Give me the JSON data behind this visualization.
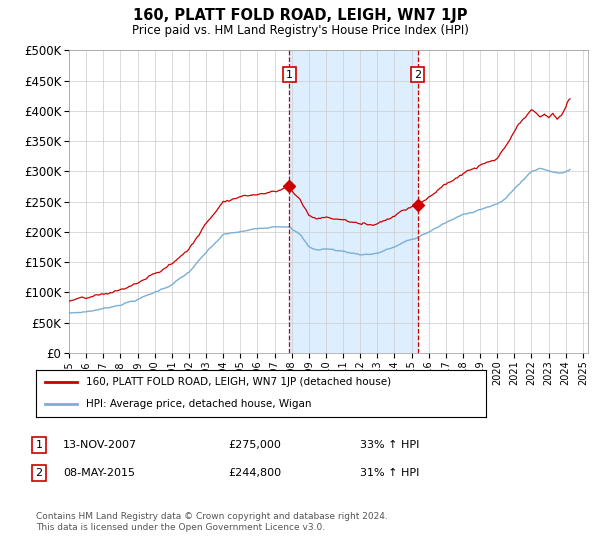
{
  "title": "160, PLATT FOLD ROAD, LEIGH, WN7 1JP",
  "subtitle": "Price paid vs. HM Land Registry's House Price Index (HPI)",
  "hpi_label": "HPI: Average price, detached house, Wigan",
  "property_label": "160, PLATT FOLD ROAD, LEIGH, WN7 1JP (detached house)",
  "transaction1_date": "13-NOV-2007",
  "transaction1_price": "£275,000",
  "transaction1_hpi": "33% ↑ HPI",
  "transaction2_date": "08-MAY-2015",
  "transaction2_price": "£244,800",
  "transaction2_hpi": "31% ↑ HPI",
  "transaction1_year": 2007.87,
  "transaction2_year": 2015.36,
  "transaction1_price_val": 275000,
  "transaction2_price_val": 244800,
  "footer": "Contains HM Land Registry data © Crown copyright and database right 2024.\nThis data is licensed under the Open Government Licence v3.0.",
  "ylim": [
    0,
    500000
  ],
  "yticks": [
    0,
    50000,
    100000,
    150000,
    200000,
    250000,
    300000,
    350000,
    400000,
    450000,
    500000
  ],
  "hpi_color": "#7bafd4",
  "property_color": "#cc0000",
  "shade_color": "#ddeeff",
  "footnote_color": "#555555",
  "background_color": "#ffffff",
  "grid_color": "#cccccc",
  "xlim_start": 1995,
  "xlim_end": 2025.3
}
